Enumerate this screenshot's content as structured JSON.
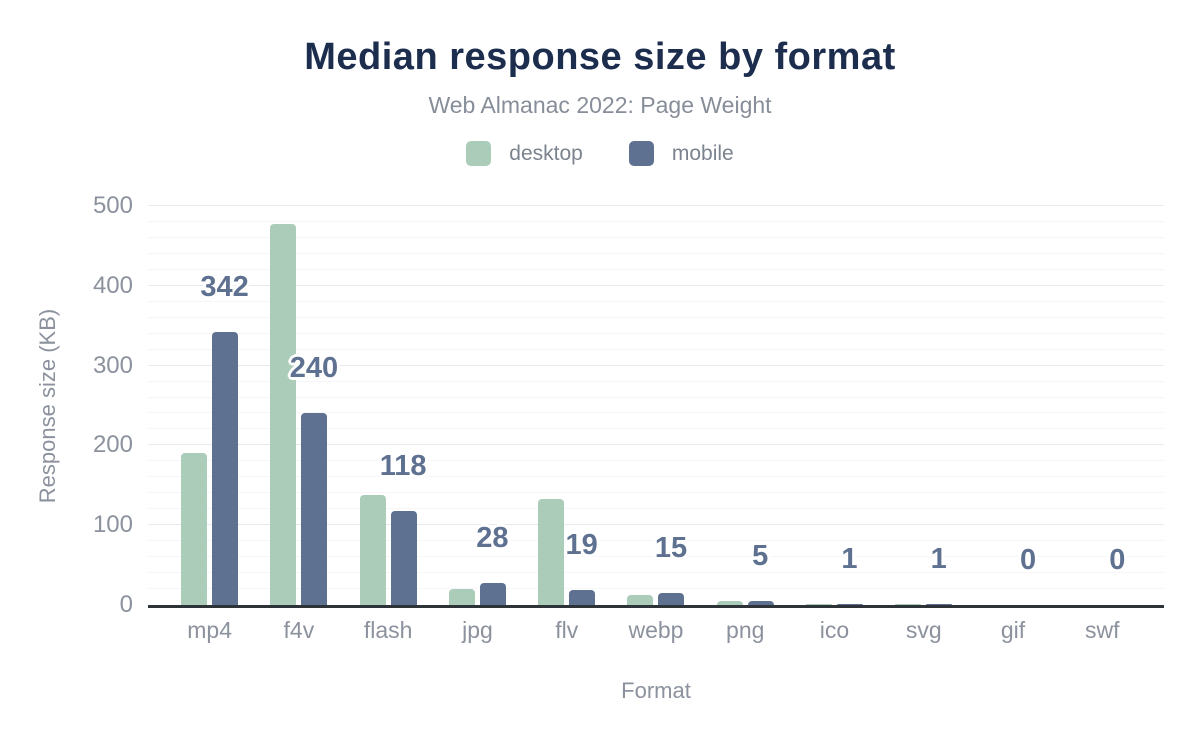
{
  "accent_colors": {
    "title": "#1c2d4d",
    "muted_text": "#8b929d",
    "axis_line": "#2e3338",
    "data_label": "#5e7190"
  },
  "chart_data": {
    "type": "bar",
    "title": "Median response size by format",
    "subtitle": "Web Almanac 2022: Page Weight",
    "xlabel": "Format",
    "ylabel": "Response size (KB)",
    "categories": [
      "mp4",
      "f4v",
      "flash",
      "jpg",
      "flv",
      "webp",
      "png",
      "ico",
      "svg",
      "gif",
      "swf"
    ],
    "series": [
      {
        "name": "desktop",
        "color": "#abccb8",
        "values": [
          190,
          478,
          138,
          20,
          133,
          12,
          5,
          1,
          1,
          0,
          0
        ]
      },
      {
        "name": "mobile",
        "color": "#5e7190",
        "values": [
          342,
          240,
          118,
          28,
          19,
          15,
          5,
          1,
          1,
          0,
          0
        ]
      }
    ],
    "data_labels": {
      "series": "mobile",
      "values": [
        "342",
        "240",
        "118",
        "28",
        "19",
        "15",
        "5",
        "1",
        "1",
        "0",
        "0"
      ]
    },
    "ylim": [
      0,
      500
    ],
    "yticks": [
      0,
      100,
      200,
      300,
      400,
      500
    ],
    "grid": {
      "minor_every": 20,
      "major_every": 100,
      "visible": true
    },
    "legend_position": "top"
  }
}
